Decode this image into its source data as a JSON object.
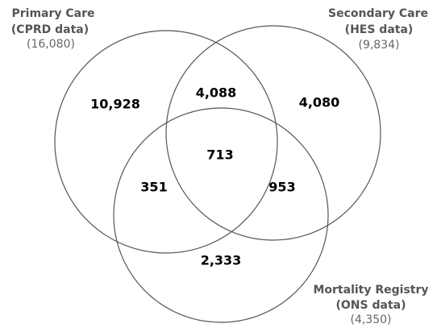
{
  "sets": [
    {
      "name": "Primary Care",
      "source": "(CPRD data)",
      "total": "(16,080)"
    },
    {
      "name": "Secondary Care",
      "source": "(HES data)",
      "total": "(9,834)"
    },
    {
      "name": "Mortality Registry",
      "source": "(ONS data)",
      "total": "(4,350)"
    }
  ],
  "regions": {
    "primary_only": "10,928",
    "primary_secondary": "4,088",
    "secondary_only": "4,080",
    "all_three": "713",
    "primary_mortality": "351",
    "secondary_mortality": "953",
    "mortality_only": "2,333"
  }
}
